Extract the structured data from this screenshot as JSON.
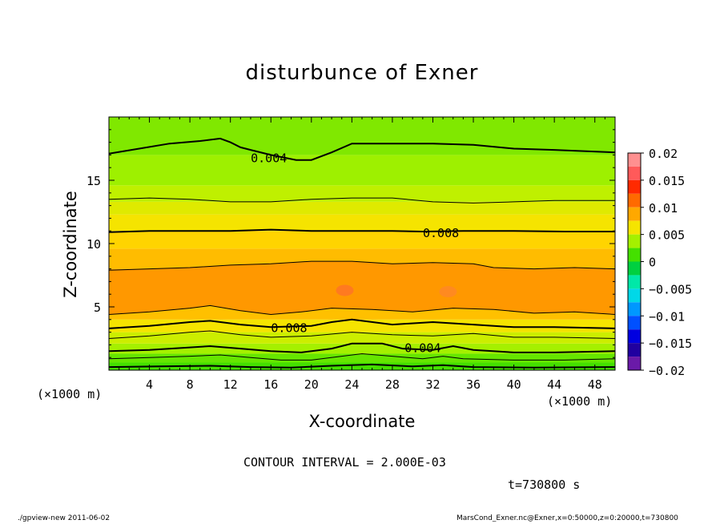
{
  "chart_data": {
    "type": "contour",
    "title": "disturbunce of Exner",
    "xlabel": "X-coordinate",
    "ylabel": "Z-coordinate",
    "x_unit": "(×1000 m)",
    "y_unit": "(×1000 m)",
    "xlim": [
      0,
      50
    ],
    "ylim": [
      0,
      20
    ],
    "x_ticks": [
      4,
      8,
      12,
      16,
      20,
      24,
      28,
      32,
      36,
      40,
      44,
      48
    ],
    "y_ticks": [
      5,
      10,
      15
    ],
    "contour_interval_text": "CONTOUR INTERVAL = 2.000E-03",
    "time_text": "t=730800 s",
    "colorbar": {
      "min": -0.02,
      "max": 0.02,
      "tick_labels": [
        "0.02",
        "0.015",
        "0.01",
        "0.005",
        "0",
        "−0.005",
        "−0.01",
        "−0.015",
        "−0.02"
      ],
      "levels": [
        {
          "lo": 0.0175,
          "hi": 0.02,
          "color": "#ff9090"
        },
        {
          "lo": 0.015,
          "hi": 0.0175,
          "color": "#ff5a5a"
        },
        {
          "lo": 0.0125,
          "hi": 0.015,
          "color": "#ff2a00"
        },
        {
          "lo": 0.01,
          "hi": 0.0125,
          "color": "#ff6a00"
        },
        {
          "lo": 0.0075,
          "hi": 0.01,
          "color": "#ffa800"
        },
        {
          "lo": 0.005,
          "hi": 0.0075,
          "color": "#f5e400"
        },
        {
          "lo": 0.0025,
          "hi": 0.005,
          "color": "#a5f000"
        },
        {
          "lo": 0.0,
          "hi": 0.0025,
          "color": "#44e000"
        },
        {
          "lo": -0.0025,
          "hi": 0.0,
          "color": "#00d040"
        },
        {
          "lo": -0.005,
          "hi": -0.0025,
          "color": "#00e8a8"
        },
        {
          "lo": -0.0075,
          "hi": -0.005,
          "color": "#00d8e8"
        },
        {
          "lo": -0.01,
          "hi": -0.0075,
          "color": "#0098ff"
        },
        {
          "lo": -0.0125,
          "hi": -0.01,
          "color": "#0050ff"
        },
        {
          "lo": -0.015,
          "hi": -0.0125,
          "color": "#0000e0"
        },
        {
          "lo": -0.0175,
          "hi": -0.015,
          "color": "#2000a0"
        },
        {
          "lo": -0.02,
          "hi": -0.0175,
          "color": "#6a1aa8"
        }
      ]
    },
    "field_bands": [
      {
        "z_lo": 0.0,
        "z_hi": 0.6,
        "value": 0.001,
        "color": "#44e000"
      },
      {
        "z_lo": 0.6,
        "z_hi": 1.3,
        "value": 0.002,
        "color": "#66e600"
      },
      {
        "z_lo": 1.3,
        "z_hi": 2.1,
        "value": 0.0035,
        "color": "#a5f000"
      },
      {
        "z_lo": 2.1,
        "z_hi": 3.0,
        "value": 0.0055,
        "color": "#ccee00"
      },
      {
        "z_lo": 3.0,
        "z_hi": 4.0,
        "value": 0.007,
        "color": "#f5e400"
      },
      {
        "z_lo": 4.0,
        "z_hi": 5.3,
        "value": 0.0085,
        "color": "#ffc000"
      },
      {
        "z_lo": 5.3,
        "z_hi": 8.0,
        "value": 0.0095,
        "color": "#ffa000"
      },
      {
        "z_lo": 8.0,
        "z_hi": 9.6,
        "value": 0.0085,
        "color": "#ffbc00"
      },
      {
        "z_lo": 9.6,
        "z_hi": 11.0,
        "value": 0.0075,
        "color": "#ffd400"
      },
      {
        "z_lo": 11.0,
        "z_hi": 12.3,
        "value": 0.0065,
        "color": "#f5e400"
      },
      {
        "z_lo": 12.3,
        "z_hi": 13.3,
        "value": 0.0055,
        "color": "#dfea00"
      },
      {
        "z_lo": 13.3,
        "z_hi": 14.6,
        "value": 0.0045,
        "color": "#bff000"
      },
      {
        "z_lo": 14.6,
        "z_hi": 17.0,
        "value": 0.0035,
        "color": "#9ef000"
      },
      {
        "z_lo": 17.0,
        "z_hi": 20.0,
        "value": 0.002,
        "color": "#80e800"
      }
    ],
    "contours": [
      {
        "level": 0.004,
        "label": "0.004",
        "bold": true,
        "label_x": 15.8,
        "label_z": 16.8,
        "points": [
          [
            0,
            17.1
          ],
          [
            3,
            17.5
          ],
          [
            6,
            17.9
          ],
          [
            9,
            18.1
          ],
          [
            11,
            18.3
          ],
          [
            12,
            18.0
          ],
          [
            13,
            17.6
          ],
          [
            14,
            17.4
          ],
          [
            16,
            17.0
          ],
          [
            18.5,
            16.6
          ],
          [
            20,
            16.6
          ],
          [
            22,
            17.2
          ],
          [
            24,
            17.9
          ],
          [
            28,
            17.9
          ],
          [
            32,
            17.9
          ],
          [
            36,
            17.8
          ],
          [
            40,
            17.5
          ],
          [
            44,
            17.4
          ],
          [
            50,
            17.2
          ]
        ]
      },
      {
        "level": 0.006,
        "label": "",
        "bold": false,
        "label_x": null,
        "label_z": null,
        "points": [
          [
            0,
            13.5
          ],
          [
            4,
            13.6
          ],
          [
            8,
            13.5
          ],
          [
            12,
            13.3
          ],
          [
            16,
            13.3
          ],
          [
            20,
            13.5
          ],
          [
            24,
            13.6
          ],
          [
            28,
            13.6
          ],
          [
            32,
            13.3
          ],
          [
            36,
            13.2
          ],
          [
            40,
            13.3
          ],
          [
            44,
            13.4
          ],
          [
            50,
            13.4
          ]
        ]
      },
      {
        "level": 0.008,
        "label": "0.008",
        "bold": true,
        "label_x": 32.8,
        "label_z": 10.9,
        "points": [
          [
            0,
            10.9
          ],
          [
            4,
            11.0
          ],
          [
            8,
            11.0
          ],
          [
            12,
            11.0
          ],
          [
            16,
            11.1
          ],
          [
            20,
            11.0
          ],
          [
            24,
            11.0
          ],
          [
            28,
            11.0
          ],
          [
            31,
            10.95
          ],
          [
            35,
            11.0
          ],
          [
            40,
            11.0
          ],
          [
            45,
            10.95
          ],
          [
            50,
            10.95
          ]
        ]
      },
      {
        "level": 0.01,
        "label": "",
        "bold": false,
        "label_x": null,
        "label_z": null,
        "points": [
          [
            0,
            7.9
          ],
          [
            4,
            8.0
          ],
          [
            8,
            8.1
          ],
          [
            12,
            8.3
          ],
          [
            16,
            8.4
          ],
          [
            20,
            8.6
          ],
          [
            24,
            8.6
          ],
          [
            28,
            8.4
          ],
          [
            32,
            8.5
          ],
          [
            36,
            8.4
          ],
          [
            38,
            8.1
          ],
          [
            42,
            8.0
          ],
          [
            46,
            8.1
          ],
          [
            50,
            8.0
          ]
        ]
      },
      {
        "level": 0.01,
        "label": "",
        "bold": false,
        "label_x": null,
        "label_z": null,
        "points": [
          [
            0,
            4.4
          ],
          [
            4,
            4.6
          ],
          [
            8,
            4.9
          ],
          [
            10,
            5.1
          ],
          [
            13,
            4.7
          ],
          [
            16,
            4.4
          ],
          [
            19,
            4.6
          ],
          [
            22,
            4.9
          ],
          [
            26,
            4.8
          ],
          [
            30,
            4.6
          ],
          [
            34,
            4.9
          ],
          [
            38,
            4.8
          ],
          [
            42,
            4.5
          ],
          [
            46,
            4.6
          ],
          [
            50,
            4.4
          ]
        ]
      },
      {
        "level": 0.008,
        "label": "0.008",
        "bold": true,
        "label_x": 17.8,
        "label_z": 3.4,
        "points": [
          [
            0,
            3.3
          ],
          [
            4,
            3.5
          ],
          [
            8,
            3.8
          ],
          [
            10,
            3.9
          ],
          [
            13,
            3.6
          ],
          [
            16,
            3.4
          ],
          [
            20,
            3.5
          ],
          [
            22,
            3.8
          ],
          [
            24,
            4.0
          ],
          [
            28,
            3.6
          ],
          [
            32,
            3.8
          ],
          [
            36,
            3.6
          ],
          [
            40,
            3.4
          ],
          [
            44,
            3.4
          ],
          [
            50,
            3.3
          ]
        ]
      },
      {
        "level": 0.006,
        "label": "",
        "bold": false,
        "label_x": null,
        "label_z": null,
        "points": [
          [
            0,
            2.5
          ],
          [
            4,
            2.7
          ],
          [
            8,
            3.0
          ],
          [
            10,
            3.1
          ],
          [
            13,
            2.8
          ],
          [
            16,
            2.6
          ],
          [
            20,
            2.7
          ],
          [
            24,
            3.0
          ],
          [
            28,
            2.8
          ],
          [
            32,
            2.7
          ],
          [
            36,
            2.9
          ],
          [
            40,
            2.6
          ],
          [
            44,
            2.6
          ],
          [
            50,
            2.5
          ]
        ]
      },
      {
        "level": 0.004,
        "label": "0.004",
        "bold": true,
        "label_x": 31.0,
        "label_z": 1.8,
        "points": [
          [
            0,
            1.5
          ],
          [
            4,
            1.6
          ],
          [
            8,
            1.8
          ],
          [
            10,
            1.9
          ],
          [
            13,
            1.7
          ],
          [
            16,
            1.5
          ],
          [
            19,
            1.4
          ],
          [
            22,
            1.7
          ],
          [
            24,
            2.1
          ],
          [
            27,
            2.1
          ],
          [
            29,
            1.7
          ],
          [
            32,
            1.6
          ],
          [
            34,
            1.9
          ],
          [
            36,
            1.6
          ],
          [
            40,
            1.4
          ],
          [
            44,
            1.4
          ],
          [
            50,
            1.5
          ]
        ]
      },
      {
        "level": 0.002,
        "label": "",
        "bold": false,
        "label_x": null,
        "label_z": null,
        "points": [
          [
            0,
            0.9
          ],
          [
            4,
            1.0
          ],
          [
            8,
            1.1
          ],
          [
            11,
            1.2
          ],
          [
            14,
            1.0
          ],
          [
            17,
            0.8
          ],
          [
            20,
            0.8
          ],
          [
            23,
            1.1
          ],
          [
            25,
            1.3
          ],
          [
            28,
            1.1
          ],
          [
            31,
            0.9
          ],
          [
            33,
            1.1
          ],
          [
            35,
            0.9
          ],
          [
            40,
            0.8
          ],
          [
            45,
            0.8
          ],
          [
            50,
            0.9
          ]
        ]
      },
      {
        "level": 0.0,
        "label": "",
        "bold": true,
        "label_x": null,
        "label_z": null,
        "points": [
          [
            0,
            0.25
          ],
          [
            5,
            0.3
          ],
          [
            10,
            0.35
          ],
          [
            14,
            0.25
          ],
          [
            18,
            0.2
          ],
          [
            22,
            0.35
          ],
          [
            26,
            0.45
          ],
          [
            30,
            0.3
          ],
          [
            33,
            0.4
          ],
          [
            36,
            0.25
          ],
          [
            42,
            0.2
          ],
          [
            50,
            0.25
          ]
        ]
      }
    ],
    "maxima": [
      {
        "x": 23.3,
        "z": 6.3,
        "value": 0.011,
        "color": "#ff7a20"
      },
      {
        "x": 33.5,
        "z": 6.2,
        "value": 0.011,
        "color": "#ff8a20"
      }
    ]
  },
  "footer": {
    "left": "./gpview-new   2011-06-02",
    "right": "MarsCond_Exner.nc@Exner,x=0:50000,z=0:20000,t=730800"
  }
}
